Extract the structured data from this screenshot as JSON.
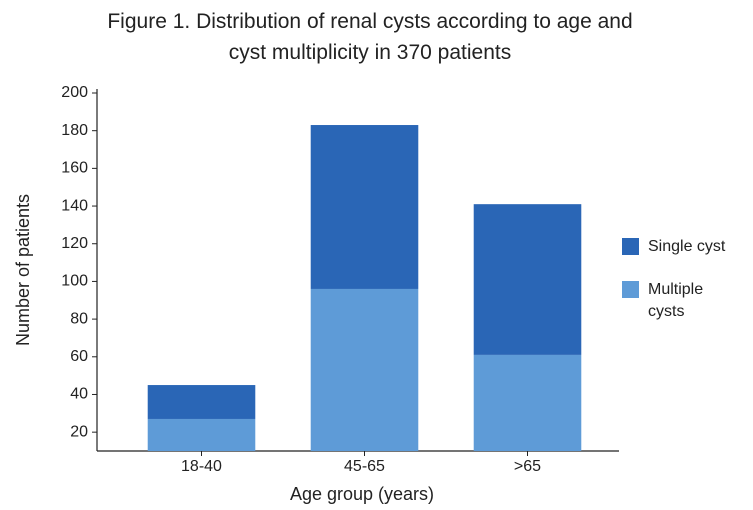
{
  "chart_data": {
    "type": "stacked_bar",
    "title": "Figure 1. Distribution of renal cysts according to age and cyst multiplicity in 370 patients",
    "x_label": "Age group (years)",
    "y_label": "Number of patients",
    "categories": [
      "18-40",
      "45-65",
      ">65"
    ],
    "series": [
      {
        "name": "Multiple cysts",
        "color": "#5e9bd7",
        "values": [
          27,
          96,
          61
        ]
      },
      {
        "name": "Single cyst",
        "color": "#2a66b6",
        "values": [
          18,
          87,
          80
        ]
      }
    ],
    "ylim": [
      10,
      200
    ],
    "yticks": [
      20,
      40,
      60,
      80,
      100,
      120,
      140,
      160,
      180,
      200
    ],
    "grid": false,
    "legend": "right"
  }
}
